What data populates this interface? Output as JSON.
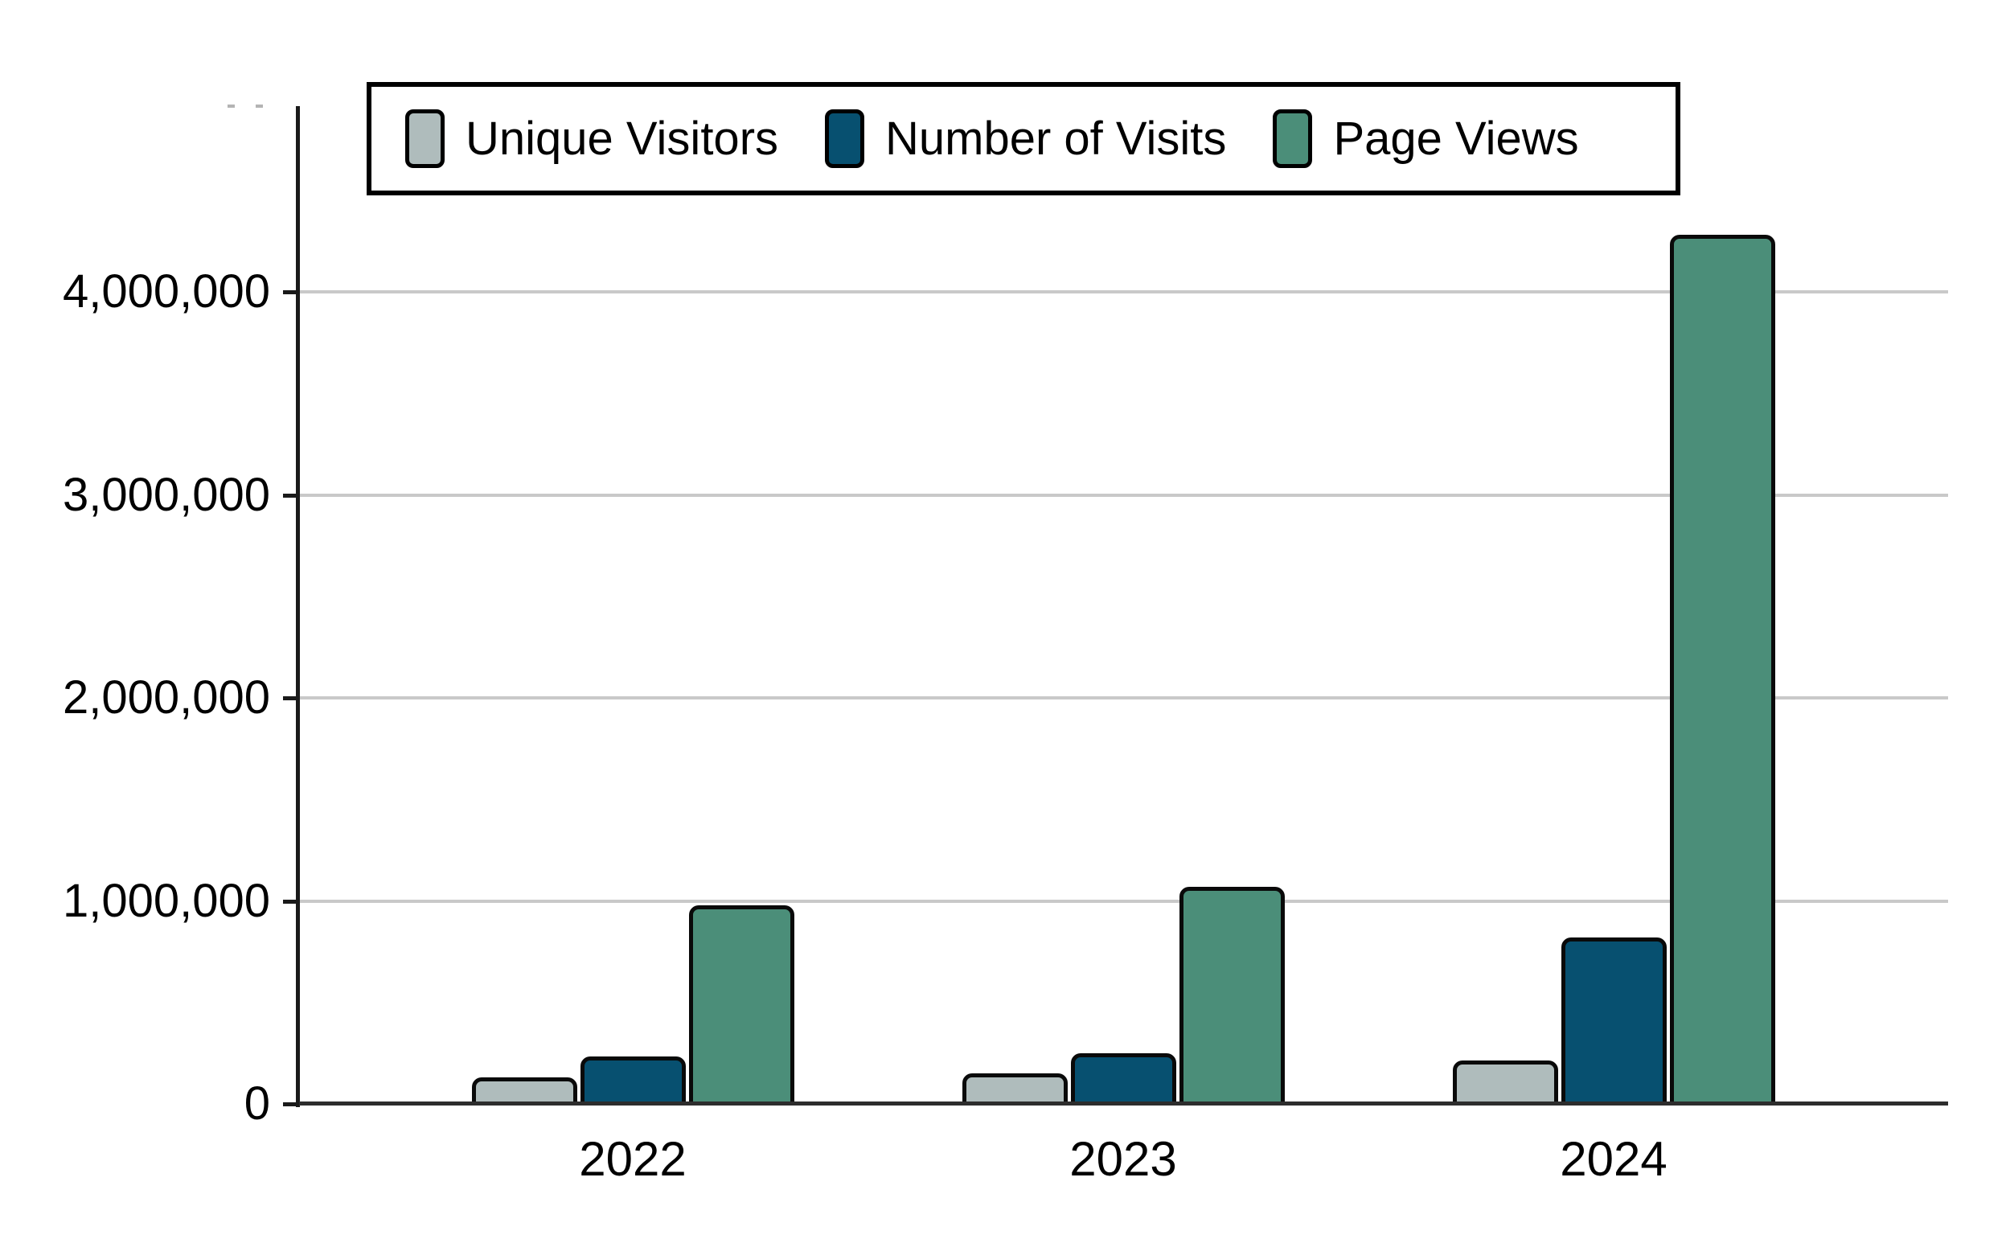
{
  "chart_data": {
    "type": "bar",
    "title": "",
    "xlabel": "",
    "ylabel": "",
    "categories": [
      "2022",
      "2023",
      "2024"
    ],
    "series": [
      {
        "name": "Unique Visitors",
        "color": "#afbcbc",
        "values": [
          130000,
          150000,
          215000
        ]
      },
      {
        "name": "Number of Visits",
        "color": "#075070",
        "values": [
          235000,
          250000,
          820000
        ]
      },
      {
        "name": "Page Views",
        "color": "#4b8e79",
        "values": [
          980000,
          1070000,
          4280000
        ]
      }
    ],
    "yticks": [
      {
        "value": 0,
        "label": "0"
      },
      {
        "value": 1000000,
        "label": "1,000,000"
      },
      {
        "value": 2000000,
        "label": "2,000,000"
      },
      {
        "value": 3000000,
        "label": "3,000,000"
      },
      {
        "value": 4000000,
        "label": "4,000,000"
      }
    ],
    "ylim": [
      0,
      4915000
    ],
    "grid": true,
    "legend_position": "top",
    "colors": {
      "background": "#ffffff",
      "grid": "#c9c9c9",
      "axis": "#1a1a1a",
      "baseline": "#2d2d2d",
      "bar_border": "#0a0a0a",
      "text": "#000000"
    }
  }
}
